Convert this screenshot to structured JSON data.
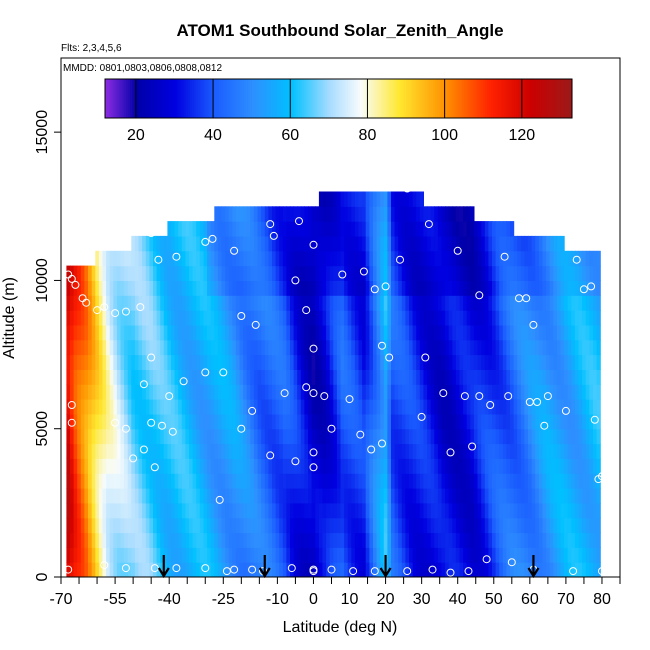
{
  "chart_data": {
    "type": "heatmap",
    "title": "ATOM1 Southbound Solar_Zenith_Angle",
    "flights_label": "Flts: 2,3,4,5,6",
    "dates_label": "MMDD: 0801,0803,0806,0808,0812",
    "xlabel": "Latitude (deg N)",
    "ylabel": "Altitude (m)",
    "xlim": [
      -70,
      85
    ],
    "ylim": [
      0,
      17500
    ],
    "x_ticks": [
      "-70",
      "-55",
      "-40",
      "-25",
      "-10",
      "0",
      "10",
      "20",
      "30",
      "40",
      "50",
      "60",
      "70",
      "80"
    ],
    "x_tick_values": [
      -70,
      -55,
      -40,
      -25,
      -10,
      0,
      10,
      20,
      30,
      40,
      50,
      60,
      70,
      80
    ],
    "y_ticks": [
      "0",
      "5000",
      "10000",
      "15000"
    ],
    "y_tick_values": [
      0,
      5000,
      10000,
      15000
    ],
    "colorbar": {
      "range": [
        12,
        133
      ],
      "ticks": [
        "20",
        "40",
        "60",
        "80",
        "100",
        "120"
      ],
      "tick_values": [
        20,
        40,
        60,
        80,
        100,
        120
      ],
      "stops": [
        {
          "v": 12,
          "c": "#8a2be2"
        },
        {
          "v": 20,
          "c": "#0000a8"
        },
        {
          "v": 30,
          "c": "#0000e0"
        },
        {
          "v": 40,
          "c": "#1a5cff"
        },
        {
          "v": 50,
          "c": "#2e8fff"
        },
        {
          "v": 60,
          "c": "#00c0ff"
        },
        {
          "v": 70,
          "c": "#a8dcff"
        },
        {
          "v": 78,
          "c": "#f8fcfc"
        },
        {
          "v": 88,
          "c": "#ffe830"
        },
        {
          "v": 100,
          "c": "#ff9000"
        },
        {
          "v": 112,
          "c": "#ff2000"
        },
        {
          "v": 122,
          "c": "#cc0000"
        },
        {
          "v": 133,
          "c": "#9b1a1a"
        }
      ]
    },
    "arrow_latitudes": [
      -41.5,
      -13.5,
      20,
      61
    ],
    "sample_points": [
      [
        -68,
        10200
      ],
      [
        -67,
        10050
      ],
      [
        -66,
        9850
      ],
      [
        -64,
        9400
      ],
      [
        -63,
        9250
      ],
      [
        -67,
        5800
      ],
      [
        -67,
        5200
      ],
      [
        -68,
        250
      ],
      [
        -60,
        9000
      ],
      [
        -58,
        9100
      ],
      [
        -55,
        8900
      ],
      [
        -52,
        8950
      ],
      [
        -48,
        9100
      ],
      [
        -45,
        11600
      ],
      [
        -43,
        10700
      ],
      [
        -38,
        10800
      ],
      [
        -30,
        11300
      ],
      [
        -28,
        11400
      ],
      [
        -22,
        11000
      ],
      [
        -12,
        11900
      ],
      [
        -4,
        12000
      ],
      [
        0,
        11200
      ],
      [
        -2,
        9000
      ],
      [
        -20,
        8800
      ],
      [
        -16,
        8500
      ],
      [
        -45,
        7400
      ],
      [
        -47,
        6500
      ],
      [
        -42,
        5100
      ],
      [
        -40,
        6100
      ],
      [
        -36,
        6600
      ],
      [
        -30,
        6900
      ],
      [
        -25,
        6900
      ],
      [
        -45,
        5200
      ],
      [
        -39,
        4900
      ],
      [
        -47,
        4300
      ],
      [
        -44,
        3700
      ],
      [
        -52,
        5000
      ],
      [
        -55,
        5200
      ],
      [
        -50,
        4000
      ],
      [
        -20,
        5000
      ],
      [
        -17,
        5600
      ],
      [
        -12,
        4100
      ],
      [
        -8,
        6200
      ],
      [
        -5,
        3900
      ],
      [
        -2,
        6400
      ],
      [
        0,
        6200
      ],
      [
        0,
        4200
      ],
      [
        0,
        3700
      ],
      [
        0,
        7700
      ],
      [
        3,
        6100
      ],
      [
        5,
        5000
      ],
      [
        10,
        6000
      ],
      [
        8,
        10200
      ],
      [
        14,
        10300
      ],
      [
        17,
        9700
      ],
      [
        20,
        9800
      ],
      [
        19,
        7800
      ],
      [
        21,
        7400
      ],
      [
        24,
        10700
      ],
      [
        31,
        7400
      ],
      [
        32,
        11900
      ],
      [
        36,
        6200
      ],
      [
        38,
        4200
      ],
      [
        42,
        6100
      ],
      [
        44,
        4400
      ],
      [
        46,
        6100
      ],
      [
        49,
        5800
      ],
      [
        40,
        11000
      ],
      [
        46,
        9500
      ],
      [
        53,
        10800
      ],
      [
        57,
        9400
      ],
      [
        59,
        9400
      ],
      [
        61,
        8500
      ],
      [
        54,
        6100
      ],
      [
        60,
        5900
      ],
      [
        62,
        5900
      ],
      [
        64,
        5100
      ],
      [
        65,
        6100
      ],
      [
        70,
        5600
      ],
      [
        73,
        10700
      ],
      [
        75,
        9700
      ],
      [
        77,
        9800
      ],
      [
        78,
        5300
      ],
      [
        80,
        3400
      ],
      [
        79,
        3300
      ],
      [
        73,
        11300
      ],
      [
        26,
        13100
      ],
      [
        16,
        4300
      ],
      [
        13,
        4800
      ],
      [
        19,
        4500
      ],
      [
        30,
        5400
      ],
      [
        -11,
        11500
      ],
      [
        -5,
        10000
      ],
      [
        -58,
        400
      ],
      [
        -52,
        300
      ],
      [
        -44,
        300
      ],
      [
        -38,
        300
      ],
      [
        -30,
        300
      ],
      [
        -22,
        250
      ],
      [
        -17,
        250
      ],
      [
        -14,
        200
      ],
      [
        -6,
        300
      ],
      [
        0,
        200
      ],
      [
        0,
        250
      ],
      [
        5,
        250
      ],
      [
        11,
        200
      ],
      [
        17,
        200
      ],
      [
        26,
        200
      ],
      [
        33,
        250
      ],
      [
        38,
        150
      ],
      [
        43,
        200
      ],
      [
        48,
        600
      ],
      [
        55,
        500
      ],
      [
        61,
        250
      ],
      [
        72,
        200
      ],
      [
        80,
        200
      ],
      [
        -26,
        2600
      ],
      [
        -24,
        200
      ]
    ]
  }
}
